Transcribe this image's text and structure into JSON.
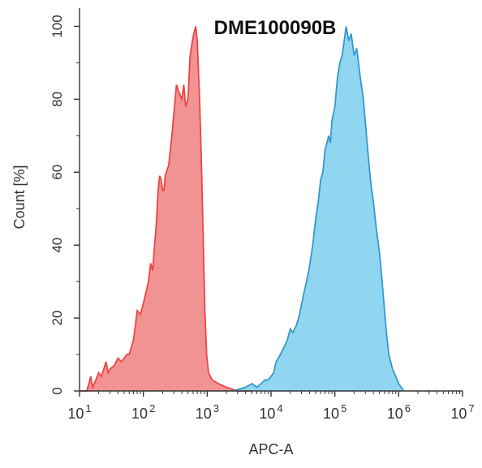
{
  "chart_data": {
    "type": "area",
    "title": "DME100090B",
    "xlabel": "APC-A",
    "ylabel": "Count [%]",
    "x_scale": "log10",
    "xlim": [
      10,
      10000000
    ],
    "ylim": [
      0,
      105
    ],
    "x_ticks": [
      {
        "value": 10,
        "base": "10",
        "exp": "1"
      },
      {
        "value": 100,
        "base": "10",
        "exp": "2"
      },
      {
        "value": 1000,
        "base": "10",
        "exp": "3"
      },
      {
        "value": 10000,
        "base": "10",
        "exp": "4"
      },
      {
        "value": 100000,
        "base": "10",
        "exp": "5"
      },
      {
        "value": 1000000,
        "base": "10",
        "exp": "6"
      },
      {
        "value": 10000000,
        "base": "10",
        "exp": "7"
      }
    ],
    "y_ticks": [
      "0",
      "20",
      "40",
      "60",
      "80",
      "100"
    ],
    "grid": false,
    "legend": "none",
    "series": [
      {
        "color": "#ee4444",
        "fill": "#f08080",
        "points": [
          [
            10,
            0
          ],
          [
            13,
            0
          ],
          [
            14,
            2
          ],
          [
            15,
            4
          ],
          [
            16,
            1
          ],
          [
            18,
            3
          ],
          [
            20,
            5
          ],
          [
            22,
            4
          ],
          [
            24,
            6
          ],
          [
            26,
            8
          ],
          [
            28,
            5
          ],
          [
            30,
            6
          ],
          [
            35,
            7
          ],
          [
            40,
            9
          ],
          [
            45,
            8
          ],
          [
            50,
            9
          ],
          [
            55,
            10
          ],
          [
            60,
            10
          ],
          [
            65,
            12
          ],
          [
            70,
            14
          ],
          [
            75,
            18
          ],
          [
            80,
            22
          ],
          [
            90,
            21
          ],
          [
            100,
            24
          ],
          [
            110,
            27
          ],
          [
            120,
            30
          ],
          [
            130,
            35
          ],
          [
            140,
            33
          ],
          [
            150,
            40
          ],
          [
            160,
            46
          ],
          [
            170,
            55
          ],
          [
            180,
            59
          ],
          [
            190,
            58
          ],
          [
            200,
            55
          ],
          [
            210,
            55
          ],
          [
            220,
            59
          ],
          [
            250,
            62
          ],
          [
            280,
            70
          ],
          [
            300,
            76
          ],
          [
            330,
            84
          ],
          [
            360,
            82
          ],
          [
            400,
            80
          ],
          [
            430,
            84
          ],
          [
            460,
            78
          ],
          [
            500,
            80
          ],
          [
            540,
            92
          ],
          [
            600,
            97
          ],
          [
            660,
            100
          ],
          [
            700,
            96
          ],
          [
            760,
            80
          ],
          [
            820,
            60
          ],
          [
            870,
            40
          ],
          [
            920,
            22
          ],
          [
            980,
            10
          ],
          [
            1050,
            5
          ],
          [
            1200,
            3
          ],
          [
            1500,
            2
          ],
          [
            2000,
            1
          ],
          [
            3000,
            0
          ],
          [
            5000,
            0
          ]
        ]
      },
      {
        "color": "#3399cc",
        "fill": "#7ecfee",
        "points": [
          [
            2500,
            0
          ],
          [
            4000,
            1
          ],
          [
            5000,
            2
          ],
          [
            6000,
            1
          ],
          [
            7000,
            2
          ],
          [
            8000,
            3
          ],
          [
            9000,
            3
          ],
          [
            10000,
            4
          ],
          [
            11000,
            5
          ],
          [
            12000,
            8
          ],
          [
            13000,
            9
          ],
          [
            14000,
            10
          ],
          [
            16000,
            12
          ],
          [
            18000,
            14
          ],
          [
            20000,
            17
          ],
          [
            22000,
            16
          ],
          [
            25000,
            18
          ],
          [
            28000,
            21
          ],
          [
            32000,
            26
          ],
          [
            36000,
            30
          ],
          [
            40000,
            34
          ],
          [
            45000,
            40
          ],
          [
            50000,
            47
          ],
          [
            55000,
            52
          ],
          [
            60000,
            58
          ],
          [
            65000,
            60
          ],
          [
            70000,
            66
          ],
          [
            75000,
            68
          ],
          [
            80000,
            70
          ],
          [
            85000,
            68
          ],
          [
            90000,
            74
          ],
          [
            100000,
            78
          ],
          [
            110000,
            86
          ],
          [
            120000,
            90
          ],
          [
            130000,
            92
          ],
          [
            140000,
            96
          ],
          [
            150000,
            100
          ],
          [
            165000,
            96
          ],
          [
            180000,
            98
          ],
          [
            200000,
            92
          ],
          [
            220000,
            94
          ],
          [
            250000,
            86
          ],
          [
            280000,
            80
          ],
          [
            320000,
            68
          ],
          [
            360000,
            58
          ],
          [
            400000,
            52
          ],
          [
            450000,
            44
          ],
          [
            500000,
            38
          ],
          [
            550000,
            30
          ],
          [
            600000,
            22
          ],
          [
            650000,
            15
          ],
          [
            700000,
            10
          ],
          [
            800000,
            6
          ],
          [
            900000,
            4
          ],
          [
            1000000,
            2
          ],
          [
            1200000,
            0
          ]
        ]
      }
    ]
  }
}
